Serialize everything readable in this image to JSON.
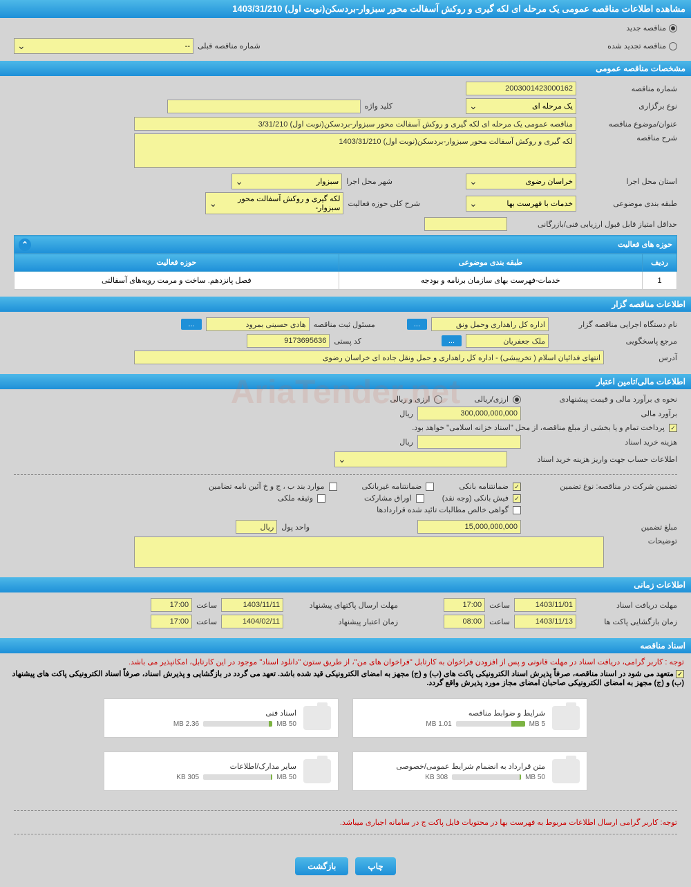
{
  "header": {
    "title": "مشاهده اطلاعات مناقصه عمومی یک مرحله ای لکه گیری و روکش آسفالت محور سبزوار-بردسکن(نوبت اول) 1403/31/210"
  },
  "tender_type": {
    "new_label": "مناقصه جدید",
    "renewed_label": "مناقصه تجدید شده",
    "prev_number_label": "شماره مناقصه قبلی",
    "prev_number_value": "--"
  },
  "sections": {
    "general_spec": "مشخصات مناقصه عمومی",
    "activity_areas": "حوزه های فعالیت",
    "tender_owner": "اطلاعات مناقصه گزار",
    "financial": "اطلاعات مالی/تامین اعتبار",
    "timing": "اطلاعات زمانی",
    "documents": "اسناد مناقصه"
  },
  "general": {
    "number_label": "شماره مناقصه",
    "number_value": "2003001423000162",
    "type_label": "نوع برگزاری",
    "type_value": "یک مرحله ای",
    "keyword_label": "کلید واژه",
    "keyword_value": "",
    "subject_label": "عنوان/موضوع مناقصه",
    "subject_value": "مناقصه عمومی یک مرحله ای لکه گیری و روکش آسفالت محور سبزوار-بردسکن(نوبت اول) 3/31/210",
    "desc_label": "شرح مناقصه",
    "desc_value": "لکه گیری و روکش آسفالت محور سبزوار-بردسکن(نوبت اول) 1403/31/210",
    "province_label": "استان محل اجرا",
    "province_value": "خراسان رضوی",
    "city_label": "شهر محل اجرا",
    "city_value": "سبزوار",
    "category_label": "طبقه بندی موضوعی",
    "category_value": "خدمات با فهرست بها",
    "activity_desc_label": "شرح کلی حوزه فعالیت",
    "activity_desc_value": "لکه گیری و روکش آسفالت محور سبزوار-",
    "min_score_label": "حداقل امتیاز قابل قبول ارزیابی فنی/بازرگانی",
    "min_score_value": ""
  },
  "activity_table": {
    "col_row": "ردیف",
    "col_category": "طبقه بندی موضوعی",
    "col_activity": "حوزه فعالیت",
    "rows": [
      {
        "num": "1",
        "category": "خدمات-فهرست بهای سازمان برنامه و بودجه",
        "activity": "فصل پانزدهم. ساخت و مرمت رویه‌های آسفالتی"
      }
    ]
  },
  "owner": {
    "org_label": "نام دستگاه اجرایی مناقصه گزار",
    "org_value": "اداره کل راهداری وحمل ونق",
    "registrar_label": "مسئول ثبت مناقصه",
    "registrar_value": "هادی حسینی بمرود",
    "contact_label": "مرجع پاسخگویی",
    "contact_value": "ملک جعفریان",
    "postal_label": "کد پستی",
    "postal_value": "9173695636",
    "address_label": "آدرس",
    "address_value": "انتهای فدائیان اسلام ( تخریبشی) - اداره کل راهداری و حمل ونقل جاده ای خراسان رضوی"
  },
  "financial": {
    "estimate_method_label": "نحوه ی برآورد مالی و قیمت پیشنهادی",
    "method_rial": "ارزی/ریالی",
    "method_both": "ارزی و ریالی",
    "estimate_label": "برآورد مالی",
    "estimate_value": "300,000,000,000",
    "currency": "ریال",
    "payment_note": "پرداخت تمام و یا بخشی از مبلغ مناقصه، از محل \"اسناد خزانه اسلامی\" خواهد بود.",
    "doc_cost_label": "هزینه خرید اسناد",
    "doc_cost_value": "",
    "doc_cost_currency": "ریال",
    "account_info_label": "اطلاعات حساب جهت واریز هزینه خرید اسناد",
    "guarantee_label": "تضمین شرکت در مناقصه:   نوع تضمین",
    "guarantee_bank": "ضمانتنامه بانکی",
    "guarantee_nonbank": "ضمانتنامه غیربانکی",
    "guarantee_items": "موارد بند ب ، ج و خ آئین نامه تضامین",
    "guarantee_check": "فیش بانکی (وجه نقد)",
    "guarantee_bonds": "اوراق مشارکت",
    "guarantee_property": "وثیقه ملکی",
    "guarantee_receivables": "گواهی خالص مطالبات تائید شده قراردادها",
    "guarantee_amount_label": "مبلغ تضمین",
    "guarantee_amount_value": "15,000,000,000",
    "currency_unit_label": "واحد پول",
    "currency_unit_value": "ریال",
    "notes_label": "توضیحات"
  },
  "timing": {
    "receive_deadline_label": "مهلت دریافت اسناد",
    "receive_deadline_date": "1403/11/01",
    "receive_deadline_time": "17:00",
    "packet_deadline_label": "مهلت ارسال پاکتهای پیشنهاد",
    "packet_deadline_date": "1403/11/11",
    "packet_deadline_time": "17:00",
    "open_time_label": "زمان بازگشایی پاکت ها",
    "open_time_date": "1403/11/13",
    "open_time_time": "08:00",
    "validity_label": "زمان اعتبار پیشنهاد",
    "validity_date": "1404/02/11",
    "validity_time": "17:00",
    "time_label": "ساعت"
  },
  "documents": {
    "note1": "توجه : کاربر گرامی، دریافت اسناد در مهلت قانونی و پس از افزودن فراخوان به کارتابل \"فراخوان های من\"، از طریق ستون \"دانلود اسناد\" موجود در این کارتابل، امکانپذیر می باشد.",
    "note2": "متعهد می شود در اسناد مناقصه، صرفاً پذیرش اسناد الکترونیکی پاکت های (ب) و (ج) مجهز به امضای الکترونیکی قید شده باشد. تعهد می گردد در بازگشایی و پذیرش اسناد، صرفاً اسناد الکترونیکی پاکت های پیشنهاد (ب) و (ج) مجهز به امضای الکترونیکی صاحبان امضای مجاز مورد پذیرش واقع گردد.",
    "files": [
      {
        "title": "شرایط و ضوابط مناقصه",
        "size": "1.01 MB",
        "max": "5 MB",
        "pct": 20
      },
      {
        "title": "اسناد فنی",
        "size": "2.36 MB",
        "max": "50 MB",
        "pct": 5
      },
      {
        "title": "متن قرارداد به انضمام شرایط عمومی/خصوصی",
        "size": "308 KB",
        "max": "50 MB",
        "pct": 2
      },
      {
        "title": "سایر مدارک/اطلاعات",
        "size": "305 KB",
        "max": "50 MB",
        "pct": 2
      }
    ],
    "footer_note": "توجه: کاربر گرامی ارسال اطلاعات مربوط به فهرست بها در محتویات فایل پاکت ج در سامانه اجباری میباشد."
  },
  "buttons": {
    "print": "چاپ",
    "back": "بازگشت"
  },
  "watermark": "AriaTender.net"
}
